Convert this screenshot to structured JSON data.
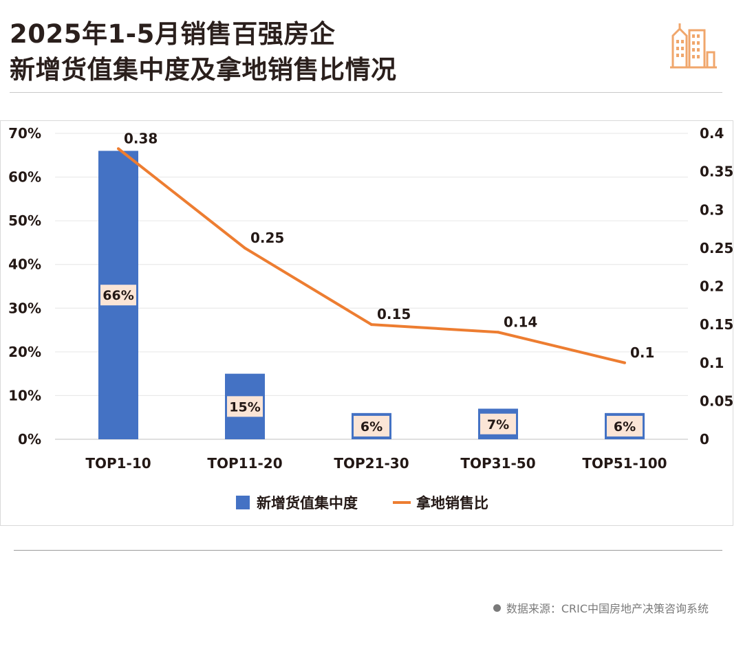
{
  "header": {
    "title_line1": "2025年1-5月销售百强房企",
    "title_line2": "新增货值集中度及拿地销售比情况"
  },
  "logo": {
    "icon": "city-buildings-icon",
    "color": "#f0a66b"
  },
  "source": {
    "text": "数据来源：CRIC中国房地产决策咨询系统"
  },
  "chart_data": {
    "type": "bar",
    "categories": [
      "TOP1-10",
      "TOP11-20",
      "TOP21-30",
      "TOP31-50",
      "TOP51-100"
    ],
    "series": [
      {
        "name": "新增货值集中度",
        "type": "bar",
        "axis": "left",
        "values": [
          66,
          15,
          6,
          7,
          6
        ],
        "labels": [
          "66%",
          "15%",
          "6%",
          "7%",
          "6%"
        ],
        "color": "#4472c4"
      },
      {
        "name": "拿地销售比",
        "type": "line",
        "axis": "right",
        "values": [
          0.38,
          0.25,
          0.15,
          0.14,
          0.1
        ],
        "labels": [
          "0.38",
          "0.25",
          "0.15",
          "0.14",
          "0.1"
        ],
        "color": "#ed7d31"
      }
    ],
    "y_left": {
      "min": 0,
      "max": 70,
      "ticks": [
        "0%",
        "10%",
        "20%",
        "30%",
        "40%",
        "50%",
        "60%",
        "70%"
      ]
    },
    "y_right": {
      "min": 0,
      "max": 0.4,
      "ticks": [
        "0",
        "0.05",
        "0.1",
        "0.15",
        "0.2",
        "0.25",
        "0.3",
        "0.35",
        "0.4"
      ]
    },
    "grid": true,
    "legend_position": "bottom",
    "bar_label_bg": "#fbe5d6"
  }
}
